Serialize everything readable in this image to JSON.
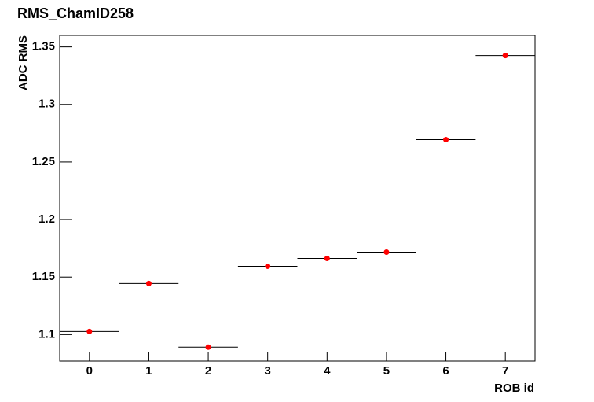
{
  "chart_data": {
    "type": "scatter",
    "title": "RMS_ChamID258",
    "x_label": "ROB id",
    "y_label": "ADC RMS",
    "x": [
      0,
      1,
      2,
      3,
      4,
      5,
      6,
      7
    ],
    "values": [
      1.1027,
      1.1444,
      1.0891,
      1.1594,
      1.1662,
      1.1717,
      1.2694,
      1.3425
    ],
    "color": "#ff0000",
    "xlim": [
      -0.5,
      7.5
    ],
    "xticks": [
      0,
      1,
      2,
      3,
      4,
      5,
      6,
      7
    ],
    "ylim": [
      1.077,
      1.36
    ],
    "yticks": [
      1.1,
      1.15,
      1.2,
      1.25,
      1.3,
      1.35
    ]
  }
}
